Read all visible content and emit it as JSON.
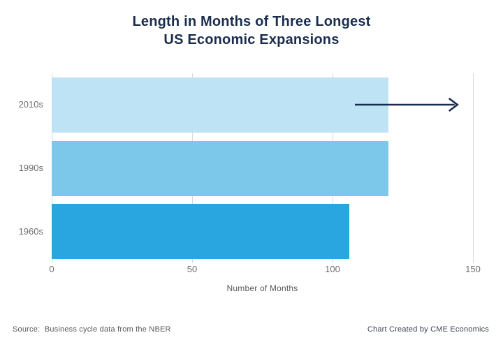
{
  "title": {
    "line1": "Length in Months of Three Longest",
    "line2": "US Economic Expansions"
  },
  "chart_data": {
    "type": "bar",
    "orientation": "horizontal",
    "title": "Length in Months of Three Longest US Economic Expansions",
    "categories": [
      "2010s",
      "1990s",
      "1960s"
    ],
    "values": [
      120,
      120,
      106
    ],
    "bar_colors": [
      "#BDE3F5",
      "#7CC8EA",
      "#29A5DF"
    ],
    "xlabel": "Number of Months",
    "xlim": [
      0,
      150
    ],
    "xticks": [
      0,
      50,
      100,
      150
    ],
    "grid": "vertical",
    "legend": "none",
    "annotation": {
      "shape": "right-arrow",
      "category": "2010s",
      "row_index": 0,
      "x_start_months": 108,
      "x_end_months": 144.5
    }
  },
  "footer": {
    "source": "Source:  Business cycle data from the NBER",
    "credit": "Chart Created by CME Economics"
  },
  "colors": {
    "title_text": "#1A2D4D",
    "arrow": "#1A2D4D",
    "axis_text": "#6E6E6E",
    "gridline": "#D8D8D8",
    "source_text": "#58595B",
    "credit_text": "#3E4653"
  }
}
